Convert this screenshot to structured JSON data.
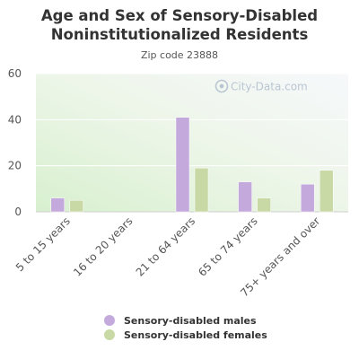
{
  "chart_data": {
    "type": "bar",
    "title_line1": "Age and Sex of Sensory-Disabled",
    "title_line2": "Noninstitutionalized Residents",
    "subtitle": "Zip code 23888",
    "categories": [
      "5 to 15 years",
      "16 to 20 years",
      "21 to 64 years",
      "65 to 74 years",
      "75+ years and over"
    ],
    "series": [
      {
        "name": "Sensory-disabled males",
        "color": "#c3a9dc",
        "values": [
          6,
          0,
          41,
          13,
          12
        ]
      },
      {
        "name": "Sensory-disabled females",
        "color": "#c9d9a6",
        "values": [
          5,
          0,
          19,
          6,
          18
        ]
      }
    ],
    "ylim": [
      0,
      60
    ],
    "yticks": [
      "0",
      "20",
      "40",
      "60"
    ],
    "grid": true,
    "legend_position": "bottom"
  },
  "watermark": "City-Data.com"
}
